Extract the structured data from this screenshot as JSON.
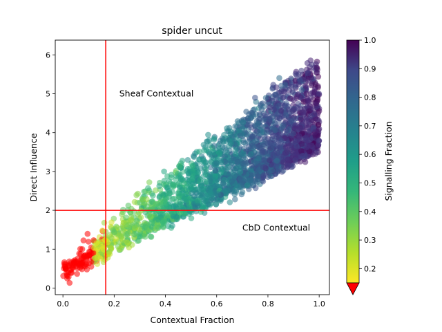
{
  "chart_data": {
    "type": "scatter",
    "title": "spider uncut",
    "xlabel": "Contextual Fraction",
    "ylabel": "Direct Influence",
    "xlim": [
      -0.03,
      1.04
    ],
    "ylim": [
      -0.17,
      6.38
    ],
    "xticks": [
      "0.0",
      "0.2",
      "0.4",
      "0.6",
      "0.8",
      "1.0"
    ],
    "yticks": [
      "0",
      "1",
      "2",
      "3",
      "4",
      "5",
      "6"
    ],
    "grid": false,
    "reference_lines": {
      "vertical_x": 0.167,
      "horizontal_y": 2.0,
      "color": "#ff0000"
    },
    "annotations": [
      {
        "text": "Sheaf Contextual",
        "x": 0.22,
        "y": 5.0
      },
      {
        "text": "CbD Contextual",
        "x": 0.7,
        "y": 1.55
      }
    ],
    "colorbar": {
      "label": "Signalling Fraction",
      "colormap": "viridis (reversed)",
      "range": [
        0.15,
        1.0
      ],
      "ticks": [
        "0.2",
        "0.3",
        "0.4",
        "0.5",
        "0.6",
        "0.7",
        "0.8",
        "0.9",
        "1.0"
      ],
      "extend_min_color": "#ff0000"
    },
    "series": [
      {
        "marker_alpha": 0.55,
        "color_encoding": "Signalling Fraction",
        "below_threshold_color": "#ff0000",
        "approx_points": 2500,
        "distribution_note": "points rise along the band from (0.0, 0.1) to (1.0, 6.0); signalling fraction increases with contextual fraction"
      }
    ]
  }
}
